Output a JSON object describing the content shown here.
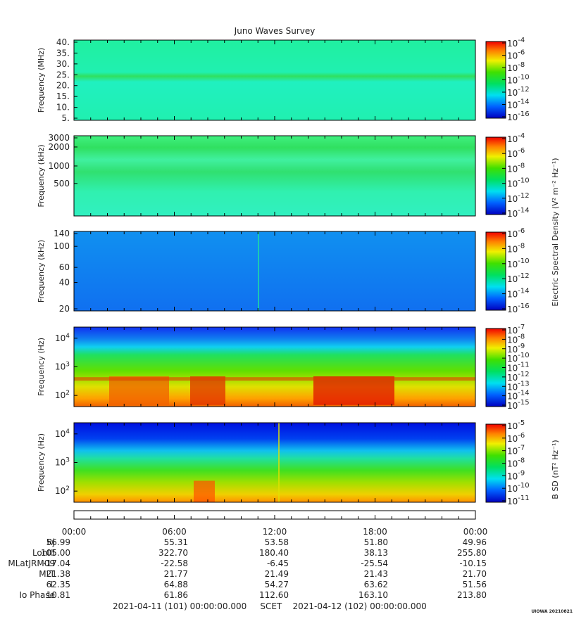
{
  "chart_data": [
    {
      "type": "heatmap",
      "title": "Juno Waves Survey",
      "ylabel": "Frequency (MHz)",
      "yticks": [
        "40.",
        "35.",
        "30.",
        "25.",
        "20.",
        "15.",
        "10.",
        "5."
      ],
      "ylim": [
        4,
        41
      ],
      "scale": "linear",
      "colorbar_ticks": [
        "-4",
        "-6",
        "-8",
        "-10",
        "-12",
        "-14",
        "-16"
      ],
      "colorbar_base": "10"
    },
    {
      "type": "heatmap",
      "ylabel": "Frequency (kHz)",
      "yticks": [
        "3000",
        "2000",
        "1000",
        "500"
      ],
      "ylim": [
        150,
        3000
      ],
      "scale": "log",
      "colorbar_ticks": [
        "-4",
        "-6",
        "-8",
        "-10",
        "-12",
        "-14"
      ],
      "colorbar_base": "10",
      "colorbar_label": "Electric Spectral Density (V² m⁻² Hz⁻¹)"
    },
    {
      "type": "heatmap",
      "ylabel": "Frequency (kHz)",
      "yticks": [
        "140",
        "100",
        "60",
        "40",
        "20"
      ],
      "ylim": [
        20,
        140
      ],
      "scale": "log",
      "colorbar_ticks": [
        "-6",
        "-8",
        "-10",
        "-12",
        "-14",
        "-16"
      ],
      "colorbar_base": "10"
    },
    {
      "type": "heatmap",
      "ylabel": "Frequency (Hz)",
      "yticks": [
        "4",
        "3",
        "2"
      ],
      "ytick_base": "10",
      "ylim": [
        50,
        20000
      ],
      "scale": "log",
      "colorbar_ticks": [
        "-7",
        "-8",
        "-9",
        "-10",
        "-11",
        "-12",
        "-13",
        "-14",
        "-15"
      ],
      "colorbar_base": "10"
    },
    {
      "type": "heatmap",
      "ylabel": "Frequency (Hz)",
      "yticks": [
        "4",
        "3",
        "2"
      ],
      "ytick_base": "10",
      "ylim": [
        50,
        20000
      ],
      "scale": "log",
      "colorbar_ticks": [
        "-5",
        "-6",
        "-7",
        "-8",
        "-9",
        "-10",
        "-11"
      ],
      "colorbar_base": "10",
      "colorbar_label": "B SD (nT² Hz⁻¹)"
    }
  ],
  "xaxis": {
    "time_labels": [
      "00:00",
      "06:00",
      "12:00",
      "18:00",
      "00:00"
    ]
  },
  "ephemeris": [
    {
      "label": "Rj",
      "values": [
        "56.99",
        "55.31",
        "53.58",
        "51.80",
        "49.96"
      ]
    },
    {
      "label": "LonIII",
      "values": [
        "105.00",
        "322.70",
        "180.40",
        "38.13",
        "255.80"
      ]
    },
    {
      "label": "MLatJRM09",
      "values": [
        "-17.04",
        "-22.58",
        "-6.45",
        "-25.54",
        "-10.15"
      ]
    },
    {
      "label": "MLT",
      "values": [
        "21.38",
        "21.77",
        "21.49",
        "21.43",
        "21.70"
      ]
    },
    {
      "label": "L",
      "values": [
        "62.35",
        "64.88",
        "54.27",
        "63.62",
        "51.56"
      ]
    },
    {
      "label": "Io Phase",
      "values": [
        "10.81",
        "61.86",
        "112.60",
        "163.10",
        "213.80"
      ]
    }
  ],
  "footer": {
    "start": "2021-04-11 (101) 00:00:00.000",
    "mid": "SCET",
    "end": "2021-04-12 (102) 00:00:00.000"
  },
  "credit": "UIOWA 20210821"
}
